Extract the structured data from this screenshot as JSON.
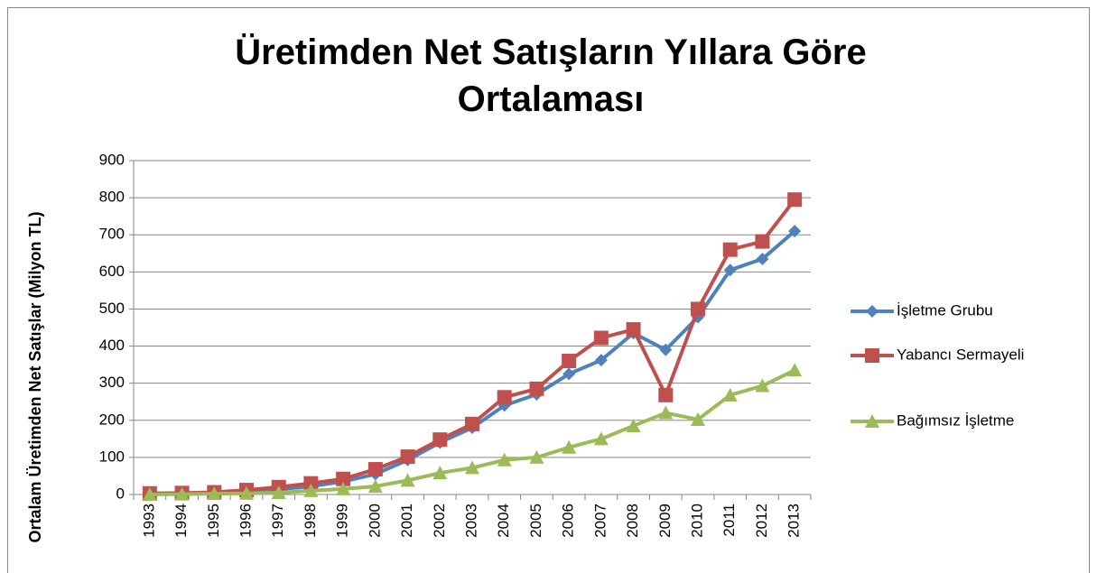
{
  "chart_data": {
    "type": "line",
    "title": "Üretimden Net Satışların Yıllara Göre Ortalaması",
    "y_label": "Ortalam Üretimden Net Satışlar (Milyon TL)",
    "categories": [
      "1993",
      "1994",
      "1995",
      "1996",
      "1997",
      "1998",
      "1999",
      "2000",
      "2001",
      "2002",
      "2003",
      "2004",
      "2005",
      "2006",
      "2007",
      "2008",
      "2009",
      "2010",
      "2011",
      "2012",
      "2013"
    ],
    "series": [
      {
        "name": "İşletme Grubu",
        "color": "#4f81bd",
        "marker": "diamond",
        "values": [
          2,
          3,
          4,
          8,
          14,
          22,
          35,
          55,
          93,
          140,
          180,
          240,
          270,
          325,
          362,
          435,
          390,
          478,
          605,
          635,
          710
        ]
      },
      {
        "name": "Yabancı Sermayeli",
        "color": "#c0504d",
        "marker": "square",
        "values": [
          3,
          4,
          6,
          12,
          20,
          30,
          42,
          68,
          102,
          148,
          190,
          262,
          285,
          360,
          422,
          445,
          268,
          500,
          660,
          682,
          795
        ]
      },
      {
        "name": "Bağımsız İşletme",
        "color": "#9bbb59",
        "marker": "triangle",
        "values": [
          0,
          1,
          2,
          3,
          5,
          10,
          15,
          22,
          38,
          58,
          72,
          93,
          100,
          127,
          150,
          185,
          220,
          202,
          268,
          293,
          335
        ]
      }
    ],
    "ylim": [
      0,
      900
    ],
    "yticks": [
      0,
      100,
      200,
      300,
      400,
      500,
      600,
      700,
      800,
      900
    ],
    "grid": true,
    "legend": "right"
  }
}
